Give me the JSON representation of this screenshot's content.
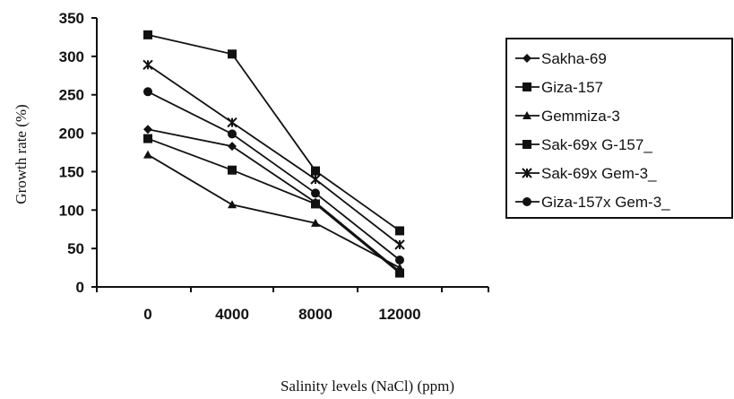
{
  "chart_data": {
    "type": "line",
    "title": "",
    "xlabel": "Salinity levels (NaCl)  (ppm)",
    "ylabel": "Growth rate (%)",
    "categories": [
      "0",
      "4000",
      "8000",
      "12000"
    ],
    "ylim": [
      0,
      350
    ],
    "yticks": [
      "0",
      "50",
      "100",
      "150",
      "200",
      "250",
      "300",
      "350"
    ],
    "grid": false,
    "legend_position": "right",
    "series": [
      {
        "name": "Sakha-69",
        "marker": "diamond",
        "values": [
          205,
          183,
          110,
          20
        ]
      },
      {
        "name": "Giza-157",
        "marker": "square",
        "values": [
          193,
          152,
          108,
          18
        ]
      },
      {
        "name": "Gemmiza-3",
        "marker": "triangle",
        "values": [
          172,
          107,
          83,
          25
        ]
      },
      {
        "name": "Sak-69x G-157_",
        "marker": "square",
        "values": [
          328,
          303,
          151,
          73
        ]
      },
      {
        "name": "Sak-69x Gem-3_",
        "marker": "star",
        "values": [
          289,
          214,
          140,
          55
        ]
      },
      {
        "name": "Giza-157x Gem-3_",
        "marker": "circle",
        "values": [
          254,
          199,
          122,
          35
        ]
      }
    ]
  }
}
